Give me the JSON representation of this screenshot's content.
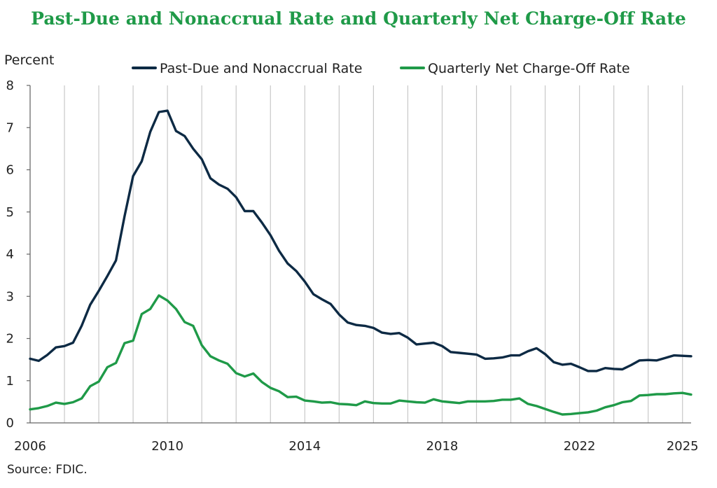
{
  "title": "Past-Due and Nonaccrual Rate and Quarterly Net Charge-Off Rate",
  "source": "Source: FDIC.",
  "colors": {
    "title": "#1f9a48",
    "series_past_due": "#0d2a44",
    "series_charge_off": "#1f9a48",
    "grid": "#c8c8c8"
  },
  "chart_data": {
    "type": "line",
    "ylabel": "Percent",
    "ylim": [
      0,
      8
    ],
    "yticks": [
      0,
      1,
      2,
      3,
      4,
      5,
      6,
      7,
      8
    ],
    "xlim": [
      2006.0,
      2025.25
    ],
    "xtick_labels": [
      {
        "x": 2006,
        "label": "2006"
      },
      {
        "x": 2010,
        "label": "2010"
      },
      {
        "x": 2014,
        "label": "2014"
      },
      {
        "x": 2018,
        "label": "2018"
      },
      {
        "x": 2022,
        "label": "2022"
      },
      {
        "x": 2025,
        "label": "2025"
      }
    ],
    "grid": "vertical, yearly",
    "legend": "top",
    "x": [
      2006.0,
      2006.25,
      2006.5,
      2006.75,
      2007.0,
      2007.25,
      2007.5,
      2007.75,
      2008.0,
      2008.25,
      2008.5,
      2008.75,
      2009.0,
      2009.25,
      2009.5,
      2009.75,
      2010.0,
      2010.25,
      2010.5,
      2010.75,
      2011.0,
      2011.25,
      2011.5,
      2011.75,
      2012.0,
      2012.25,
      2012.5,
      2012.75,
      2013.0,
      2013.25,
      2013.5,
      2013.75,
      2014.0,
      2014.25,
      2014.5,
      2014.75,
      2015.0,
      2015.25,
      2015.5,
      2015.75,
      2016.0,
      2016.25,
      2016.5,
      2016.75,
      2017.0,
      2017.25,
      2017.5,
      2017.75,
      2018.0,
      2018.25,
      2018.5,
      2018.75,
      2019.0,
      2019.25,
      2019.5,
      2019.75,
      2020.0,
      2020.25,
      2020.5,
      2020.75,
      2021.0,
      2021.25,
      2021.5,
      2021.75,
      2022.0,
      2022.25,
      2022.5,
      2022.75,
      2023.0,
      2023.25,
      2023.5,
      2023.75,
      2024.0,
      2024.25,
      2024.5,
      2024.75,
      2025.0,
      2025.25
    ],
    "series": [
      {
        "name": "Past-Due and Nonaccrual Rate",
        "values": [
          1.52,
          1.47,
          1.61,
          1.79,
          1.82,
          1.9,
          2.3,
          2.8,
          3.13,
          3.48,
          3.85,
          4.9,
          5.85,
          6.2,
          6.9,
          7.37,
          7.4,
          6.92,
          6.8,
          6.5,
          6.25,
          5.8,
          5.65,
          5.55,
          5.35,
          5.02,
          5.02,
          4.75,
          4.45,
          4.08,
          3.78,
          3.6,
          3.35,
          3.05,
          2.93,
          2.82,
          2.57,
          2.38,
          2.32,
          2.3,
          2.25,
          2.14,
          2.11,
          2.13,
          2.02,
          1.86,
          1.88,
          1.9,
          1.82,
          1.68,
          1.66,
          1.64,
          1.62,
          1.52,
          1.53,
          1.55,
          1.6,
          1.6,
          1.7,
          1.77,
          1.63,
          1.44,
          1.38,
          1.4,
          1.32,
          1.23,
          1.23,
          1.3,
          1.28,
          1.27,
          1.37,
          1.48,
          1.49,
          1.48,
          1.54,
          1.6,
          1.59,
          1.58
        ]
      },
      {
        "name": "Quarterly Net Charge-Off Rate",
        "values": [
          0.32,
          0.35,
          0.4,
          0.48,
          0.45,
          0.49,
          0.58,
          0.87,
          0.98,
          1.32,
          1.42,
          1.89,
          1.95,
          2.58,
          2.7,
          3.02,
          2.9,
          2.7,
          2.39,
          2.3,
          1.84,
          1.58,
          1.48,
          1.4,
          1.18,
          1.1,
          1.17,
          0.97,
          0.83,
          0.75,
          0.61,
          0.62,
          0.53,
          0.51,
          0.48,
          0.49,
          0.45,
          0.44,
          0.42,
          0.51,
          0.47,
          0.46,
          0.46,
          0.53,
          0.51,
          0.49,
          0.48,
          0.56,
          0.51,
          0.49,
          0.47,
          0.51,
          0.51,
          0.51,
          0.52,
          0.55,
          0.55,
          0.58,
          0.45,
          0.4,
          0.33,
          0.26,
          0.2,
          0.21,
          0.23,
          0.25,
          0.29,
          0.37,
          0.42,
          0.49,
          0.52,
          0.65,
          0.66,
          0.68,
          0.68,
          0.7,
          0.71,
          0.67
        ]
      }
    ]
  }
}
